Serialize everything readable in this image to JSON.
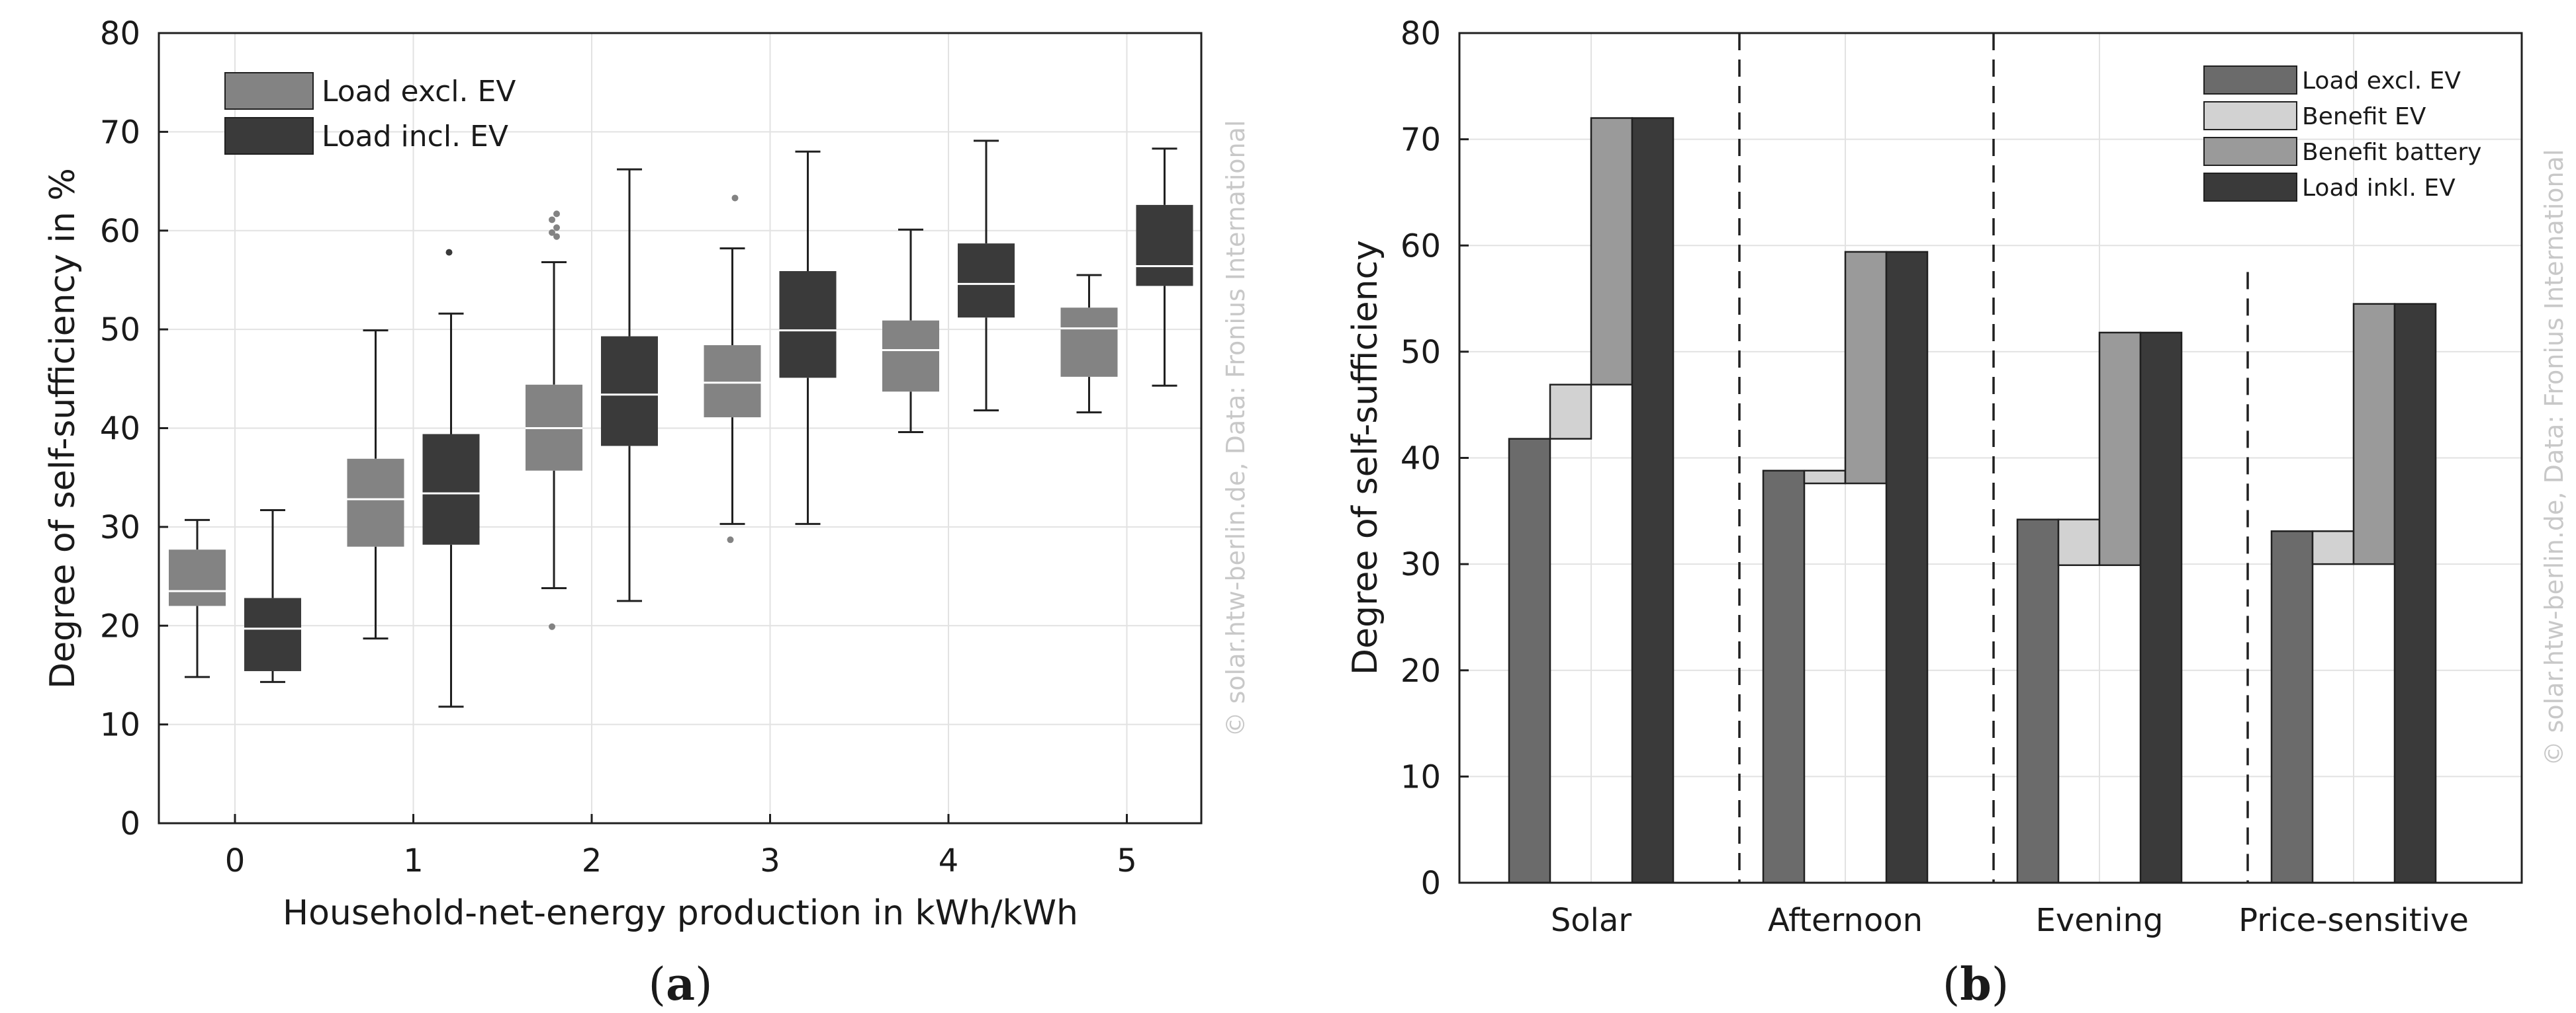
{
  "chart_data": [
    {
      "type": "box",
      "panel_label": {
        "open": "(",
        "letter": "a",
        "close": ")"
      },
      "title": "",
      "xlabel": "Household-net-energy production in kWh/kWh",
      "ylabel": "Degree of self-sufficiency in %",
      "ylim": [
        0,
        80
      ],
      "yticks": [
        0,
        10,
        20,
        30,
        40,
        50,
        60,
        70,
        80
      ],
      "categories": [
        "0",
        "1",
        "2",
        "3",
        "4",
        "5"
      ],
      "grid": true,
      "legend_position": "top-left",
      "watermark": "© solar.htw-berlin.de, Data: Fronius International",
      "series": [
        {
          "name": "Load excl. EV",
          "color": "#838383",
          "boxes": [
            {
              "category": "0",
              "whisker_low": 14.8,
              "q1": 22.0,
              "median": 23.5,
              "q3": 27.7,
              "whisker_high": 30.7,
              "outliers": []
            },
            {
              "category": "1",
              "whisker_low": 18.7,
              "q1": 28.0,
              "median": 32.8,
              "q3": 36.9,
              "whisker_high": 49.9,
              "outliers": []
            },
            {
              "category": "2",
              "whisker_low": 23.8,
              "q1": 35.7,
              "median": 40.0,
              "q3": 44.4,
              "whisker_high": 56.8,
              "outliers": [
                19.9,
                59.4,
                59.8,
                60.3,
                61.1,
                61.7
              ]
            },
            {
              "category": "3",
              "whisker_low": 30.3,
              "q1": 41.1,
              "median": 44.6,
              "q3": 48.4,
              "whisker_high": 58.2,
              "outliers": [
                28.7,
                63.3
              ]
            },
            {
              "category": "4",
              "whisker_low": 39.6,
              "q1": 43.7,
              "median": 47.9,
              "q3": 50.9,
              "whisker_high": 60.1,
              "outliers": []
            },
            {
              "category": "5",
              "whisker_low": 41.6,
              "q1": 45.2,
              "median": 50.1,
              "q3": 52.2,
              "whisker_high": 55.5,
              "outliers": []
            }
          ]
        },
        {
          "name": "Load incl. EV",
          "color": "#3a3a3a",
          "boxes": [
            {
              "category": "0",
              "whisker_low": 14.3,
              "q1": 15.4,
              "median": 19.7,
              "q3": 22.8,
              "whisker_high": 31.7,
              "outliers": []
            },
            {
              "category": "1",
              "whisker_low": 11.8,
              "q1": 28.2,
              "median": 33.4,
              "q3": 39.4,
              "whisker_high": 51.6,
              "outliers": [
                57.8
              ]
            },
            {
              "category": "2",
              "whisker_low": 22.5,
              "q1": 38.2,
              "median": 43.4,
              "q3": 49.3,
              "whisker_high": 66.2,
              "outliers": []
            },
            {
              "category": "3",
              "whisker_low": 30.3,
              "q1": 45.1,
              "median": 49.9,
              "q3": 55.9,
              "whisker_high": 68.0,
              "outliers": []
            },
            {
              "category": "4",
              "whisker_low": 41.8,
              "q1": 51.2,
              "median": 54.6,
              "q3": 58.7,
              "whisker_high": 69.1,
              "outliers": []
            },
            {
              "category": "5",
              "whisker_low": 44.3,
              "q1": 54.4,
              "median": 56.4,
              "q3": 62.6,
              "whisker_high": 68.3,
              "outliers": []
            }
          ]
        }
      ]
    },
    {
      "type": "bar",
      "panel_label": {
        "open": "(",
        "letter": "b",
        "close": ")"
      },
      "title": "",
      "xlabel": "",
      "ylabel": "Degree of self-sufficiency",
      "ylim": [
        0,
        80
      ],
      "yticks": [
        0,
        10,
        20,
        30,
        40,
        50,
        60,
        70,
        80
      ],
      "categories": [
        "Solar",
        "Afternoon",
        "Evening",
        "Price-sensitive"
      ],
      "grid": true,
      "legend_position": "top-right",
      "watermark": "© solar.htw-berlin.de, Data: Fronius International",
      "series": [
        {
          "name": "Load excl. EV",
          "color": "#6b6b6b",
          "bars": [
            {
              "from": 0,
              "to": 41.8
            },
            {
              "from": 0,
              "to": 38.8
            },
            {
              "from": 0,
              "to": 34.2
            },
            {
              "from": 0,
              "to": 33.1
            }
          ]
        },
        {
          "name": "Benefit EV",
          "color": "#d2d2d2",
          "bars": [
            {
              "from": 41.8,
              "to": 46.9
            },
            {
              "from": 38.8,
              "to": 37.6
            },
            {
              "from": 34.2,
              "to": 29.9
            },
            {
              "from": 33.1,
              "to": 30.0
            }
          ]
        },
        {
          "name": "Benefit battery",
          "color": "#9a9a9a",
          "bars": [
            {
              "from": 46.9,
              "to": 72.0
            },
            {
              "from": 37.6,
              "to": 59.4
            },
            {
              "from": 29.9,
              "to": 51.8
            },
            {
              "from": 30.0,
              "to": 54.5
            }
          ]
        },
        {
          "name": "Load inkl. EV",
          "color": "#3a3a3a",
          "bars": [
            {
              "from": 0,
              "to": 72.0
            },
            {
              "from": 0,
              "to": 59.4
            },
            {
              "from": 0,
              "to": 51.8
            },
            {
              "from": 0,
              "to": 54.5
            }
          ]
        }
      ]
    }
  ]
}
